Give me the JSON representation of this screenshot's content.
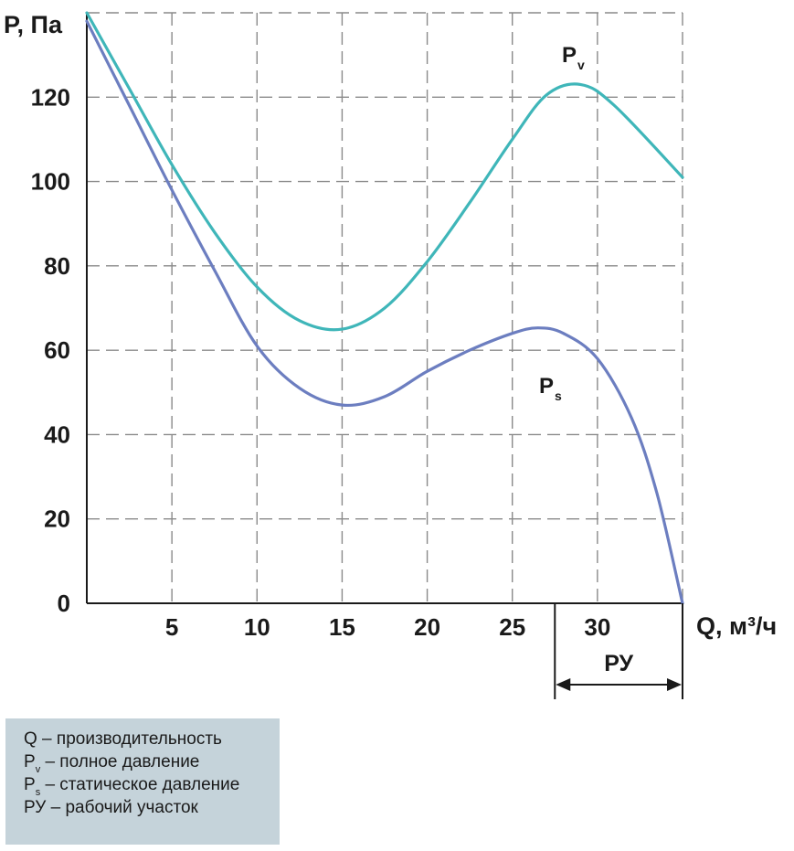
{
  "chart_data": {
    "type": "line",
    "ylabel": "P, Па",
    "xlabel": "Q, м³/ч",
    "xlim": [
      0,
      35
    ],
    "ylim": [
      0,
      140
    ],
    "x_ticks": [
      5,
      10,
      15,
      20,
      25,
      30
    ],
    "y_ticks": [
      0,
      20,
      40,
      60,
      80,
      100,
      120
    ],
    "grid": true,
    "grid_style": "dashed",
    "series": [
      {
        "name": "Pv",
        "label_main": "P",
        "label_sub": "v",
        "color": "#3fb6b9",
        "points": [
          [
            0,
            140
          ],
          [
            2.5,
            122
          ],
          [
            5,
            104
          ],
          [
            7.5,
            88
          ],
          [
            10,
            75
          ],
          [
            12.5,
            67
          ],
          [
            15,
            65
          ],
          [
            17.5,
            70
          ],
          [
            20,
            81
          ],
          [
            22.5,
            95
          ],
          [
            25,
            110
          ],
          [
            27,
            120.5
          ],
          [
            29,
            123
          ],
          [
            31,
            118
          ],
          [
            35,
            101
          ]
        ]
      },
      {
        "name": "Ps",
        "label_main": "P",
        "label_sub": "s",
        "color": "#6c7ec0",
        "points": [
          [
            0,
            138
          ],
          [
            2.5,
            118
          ],
          [
            5,
            98
          ],
          [
            7.5,
            79
          ],
          [
            10,
            61
          ],
          [
            12.5,
            51
          ],
          [
            15,
            47
          ],
          [
            17.5,
            49
          ],
          [
            20,
            55
          ],
          [
            22.5,
            60
          ],
          [
            25,
            64
          ],
          [
            26.5,
            65.3
          ],
          [
            28,
            64
          ],
          [
            30,
            58
          ],
          [
            32,
            44
          ],
          [
            33.5,
            26
          ],
          [
            35,
            0
          ]
        ]
      }
    ],
    "working_range": {
      "label": "РУ",
      "from": 27.5,
      "to": 35
    }
  },
  "legend": {
    "items": [
      {
        "main": "Q – производительность",
        "sub": "",
        "rest": ""
      },
      {
        "main": "P",
        "sub": "v",
        "rest": " – полное давление"
      },
      {
        "main": "P",
        "sub": "s",
        "rest": " – статическое давление"
      },
      {
        "main": "РУ – рабочий участок",
        "sub": "",
        "rest": ""
      }
    ]
  }
}
